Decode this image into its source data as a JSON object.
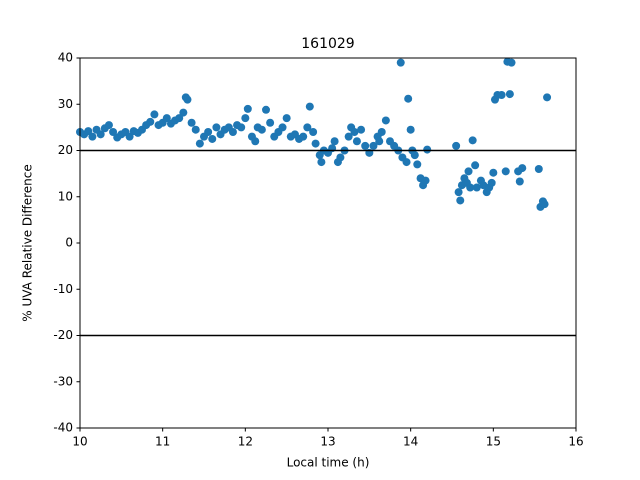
{
  "chart_data": {
    "type": "scatter",
    "title": "161029",
    "x_label": "Local time (h)",
    "y_label": "% UVA Relative Difference",
    "xlim": [
      10,
      16
    ],
    "ylim": [
      -40,
      40
    ],
    "xticks": [
      10,
      11,
      12,
      13,
      14,
      15,
      16
    ],
    "yticks": [
      -40,
      -30,
      -20,
      -10,
      0,
      10,
      20,
      30,
      40
    ],
    "grid": false,
    "hlines": [
      20,
      -20
    ],
    "hline_color": "#000000",
    "series": [
      {
        "color": "#1f77b4",
        "x": [
          10.0,
          10.05,
          10.1,
          10.15,
          10.2,
          10.25,
          10.3,
          10.35,
          10.4,
          10.45,
          10.5,
          10.55,
          10.6,
          10.65,
          10.7,
          10.75,
          10.8,
          10.85,
          10.9,
          10.95,
          11.0,
          11.05,
          11.1,
          11.15,
          11.2,
          11.25,
          11.28,
          11.3,
          11.35,
          11.4,
          11.45,
          11.5,
          11.55,
          11.6,
          11.65,
          11.7,
          11.75,
          11.8,
          11.85,
          11.9,
          11.95,
          12.0,
          12.03,
          12.08,
          12.12,
          12.15,
          12.2,
          12.25,
          12.3,
          12.35,
          12.4,
          12.45,
          12.5,
          12.55,
          12.6,
          12.65,
          12.7,
          12.75,
          12.78,
          12.82,
          12.85,
          12.9,
          12.92,
          12.95,
          13.0,
          13.05,
          13.08,
          13.12,
          13.15,
          13.2,
          13.25,
          13.28,
          13.32,
          13.35,
          13.4,
          13.45,
          13.5,
          13.55,
          13.6,
          13.62,
          13.65,
          13.7,
          13.75,
          13.8,
          13.85,
          13.88,
          13.9,
          13.95,
          13.97,
          14.0,
          14.02,
          14.05,
          14.08,
          14.12,
          14.15,
          14.18,
          14.2,
          14.55,
          14.58,
          14.6,
          14.62,
          14.65,
          14.68,
          14.7,
          14.72,
          14.75,
          14.78,
          14.8,
          14.85,
          14.88,
          14.92,
          14.95,
          14.98,
          15.0,
          15.02,
          15.05,
          15.1,
          15.15,
          15.17,
          15.2,
          15.22,
          15.3,
          15.32,
          15.35,
          15.55,
          15.57,
          15.6,
          15.62,
          15.65
        ],
        "values": [
          24,
          23.5,
          24.2,
          23,
          24.5,
          23.5,
          24.8,
          25.5,
          24,
          22.8,
          23.5,
          24,
          23,
          24.2,
          23.8,
          24.5,
          25.5,
          26.2,
          27.8,
          25.5,
          26,
          27,
          25.8,
          26.5,
          27,
          28.2,
          31.5,
          31,
          26,
          24.5,
          21.5,
          23,
          24,
          22.5,
          25,
          23.5,
          24.5,
          25,
          24,
          25.5,
          25,
          27,
          29,
          23,
          22,
          25,
          24.5,
          28.8,
          26,
          23,
          24,
          25,
          27,
          23,
          23.5,
          22.5,
          23,
          25,
          29.5,
          24,
          21.5,
          19,
          17.5,
          20,
          19.5,
          20.5,
          22,
          17.5,
          18.5,
          20,
          23,
          25,
          24,
          22,
          24.5,
          21,
          19.5,
          21,
          23,
          22,
          24,
          26.5,
          22,
          21,
          20,
          39,
          18.5,
          17.5,
          31.2,
          24.5,
          20,
          19,
          17,
          14,
          12.5,
          13.5,
          20.2,
          21,
          11,
          9.2,
          12.5,
          14,
          13,
          15.5,
          12,
          22.2,
          16.8,
          12,
          13.5,
          12.5,
          11,
          12,
          13,
          15.2,
          31,
          32,
          32,
          15.5,
          39.2,
          32.2,
          39,
          15.5,
          13.3,
          16.2,
          16,
          7.8,
          9,
          8.4,
          31.5
        ]
      }
    ]
  }
}
